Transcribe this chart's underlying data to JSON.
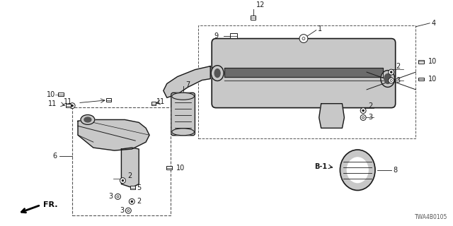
{
  "diagram_id": "TWA4B0105",
  "bg_color": "#ffffff",
  "line_color": "#1a1a1a",
  "gray_fill": "#c8c8c8",
  "dark_fill": "#888888",
  "figsize": [
    6.4,
    3.2
  ],
  "dpi": 100
}
